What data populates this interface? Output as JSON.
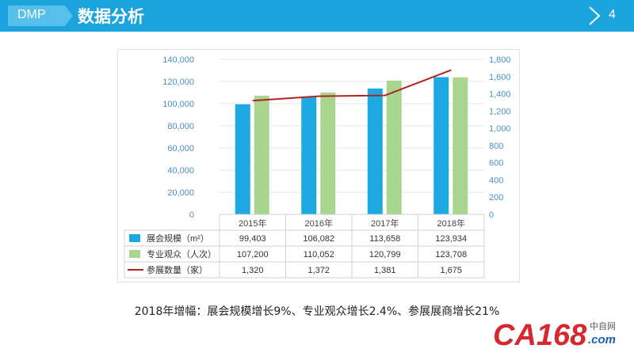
{
  "header": {
    "tag": "DMP",
    "title": "数据分析",
    "page_number": "4"
  },
  "caption": "2018年增幅：展会规模增长9%、专业观众增长2.4%、参展展商增长21%",
  "logo": {
    "text": "CA168",
    "suffix": ".com",
    "cn": "中自网"
  },
  "colors": {
    "header_bg": "#1aa3dd",
    "bar_blue": "#1fa9e3",
    "bar_green": "#a9d68f",
    "line_red": "#b22222",
    "tick_text": "#4a8fc4"
  },
  "chart_data": {
    "type": "bar",
    "categories": [
      "2015年",
      "2016年",
      "2017年",
      "2018年"
    ],
    "series": [
      {
        "name": "展会规模（m²）",
        "type": "bar",
        "axis": "left",
        "values": [
          99403,
          106082,
          113658,
          123934
        ],
        "display": [
          "99,403",
          "106,082",
          "113,658",
          "123,934"
        ]
      },
      {
        "name": "专业观众（人次）",
        "type": "bar",
        "axis": "left",
        "values": [
          107200,
          110052,
          120799,
          123708
        ],
        "display": [
          "107,200",
          "110,052",
          "120,799",
          "123,708"
        ]
      },
      {
        "name": "参展数量（家）",
        "type": "line",
        "axis": "right",
        "values": [
          1320,
          1372,
          1381,
          1675
        ],
        "display": [
          "1,320",
          "1,372",
          "1,381",
          "1,675"
        ]
      }
    ],
    "left_axis": {
      "ylim": [
        0,
        140000
      ],
      "ticks": [
        "0",
        "20,000",
        "40,000",
        "60,000",
        "80,000",
        "100,000",
        "120,000",
        "140,000"
      ]
    },
    "right_axis": {
      "ylim": [
        0,
        1800
      ],
      "ticks": [
        "0",
        "200",
        "400",
        "600",
        "800",
        "1,000",
        "1,200",
        "1,400",
        "1,600",
        "1,800"
      ]
    },
    "grid": true,
    "legend": "data table below chart"
  }
}
